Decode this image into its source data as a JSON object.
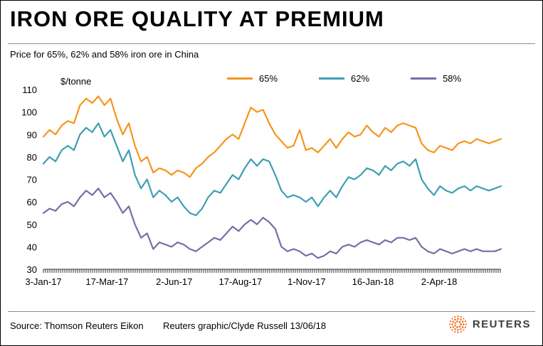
{
  "title": "IRON ORE QUALITY AT PREMIUM",
  "subtitle": "Price for 65%, 62% and 58% iron ore in China",
  "unit_label": "$/tonne",
  "footer": {
    "source": "Source: Thomson Reuters Eikon",
    "credit": "Reuters graphic/Clyde Russell 13/06/18",
    "logo_text": "REUTERS"
  },
  "colors": {
    "series_65": "#F7941D",
    "series_62": "#3D9FB5",
    "series_58": "#7C6BA5",
    "axis": "#333333",
    "logo_orange": "#F36F21"
  },
  "chart_data": {
    "type": "line",
    "title": "IRON ORE QUALITY AT PREMIUM",
    "subtitle": "Price for 65%, 62% and 58% iron ore in China",
    "ylabel": "$/tonne",
    "ylim": [
      30,
      110
    ],
    "ytick_step": 10,
    "grid": false,
    "legend_position": "top",
    "x_unit": "weeks since 3-Jan-17",
    "x_weeks_total": 75,
    "xticks": [
      {
        "week": 0,
        "label": "3-Jan-17"
      },
      {
        "week": 10.43,
        "label": "17-Mar-17"
      },
      {
        "week": 21.43,
        "label": "2-Jun-17"
      },
      {
        "week": 32.29,
        "label": "17-Aug-17"
      },
      {
        "week": 43.14,
        "label": "1-Nov-17"
      },
      {
        "week": 54.0,
        "label": "16-Jan-18"
      },
      {
        "week": 64.86,
        "label": "2-Apr-18"
      }
    ],
    "series": [
      {
        "name": "65%",
        "color": "#F7941D",
        "values": [
          89,
          92,
          90,
          94,
          96,
          95,
          103,
          106,
          104,
          107,
          103,
          106,
          97,
          90,
          95,
          85,
          78,
          80,
          73,
          75,
          74,
          72,
          74,
          73,
          71,
          75,
          77,
          80,
          82,
          85,
          88,
          90,
          88,
          95,
          102,
          100,
          101,
          95,
          90,
          87,
          84,
          85,
          92,
          83,
          84,
          82,
          85,
          88,
          84,
          88,
          91,
          89,
          90,
          94,
          91,
          89,
          93,
          91,
          94,
          95,
          94,
          93,
          86,
          83,
          82,
          85,
          84,
          83,
          86,
          87,
          86,
          88,
          87,
          86,
          87,
          88
        ]
      },
      {
        "name": "62%",
        "color": "#3D9FB5",
        "values": [
          77,
          80,
          78,
          83,
          85,
          83,
          90,
          93,
          91,
          95,
          89,
          92,
          85,
          78,
          83,
          72,
          66,
          70,
          62,
          65,
          63,
          60,
          62,
          58,
          55,
          54,
          57,
          62,
          65,
          64,
          68,
          72,
          70,
          75,
          79,
          76,
          79,
          78,
          72,
          65,
          62,
          63,
          62,
          60,
          62,
          58,
          62,
          65,
          62,
          67,
          71,
          70,
          72,
          75,
          74,
          72,
          76,
          74,
          77,
          78,
          76,
          79,
          70,
          66,
          63,
          67,
          65,
          64,
          66,
          67,
          65,
          67,
          66,
          65,
          66,
          67
        ]
      },
      {
        "name": "58%",
        "color": "#7C6BA5",
        "values": [
          55,
          57,
          56,
          59,
          60,
          58,
          62,
          65,
          63,
          66,
          62,
          64,
          60,
          55,
          58,
          50,
          44,
          46,
          39,
          42,
          41,
          40,
          42,
          41,
          39,
          38,
          40,
          42,
          44,
          43,
          46,
          49,
          47,
          50,
          52,
          50,
          53,
          51,
          48,
          40,
          38,
          39,
          38,
          36,
          37,
          35,
          36,
          38,
          37,
          40,
          41,
          40,
          42,
          43,
          42,
          41,
          43,
          42,
          44,
          44,
          43,
          44,
          40,
          38,
          37,
          39,
          38,
          37,
          38,
          39,
          38,
          39,
          38,
          38,
          38,
          39
        ]
      }
    ]
  }
}
